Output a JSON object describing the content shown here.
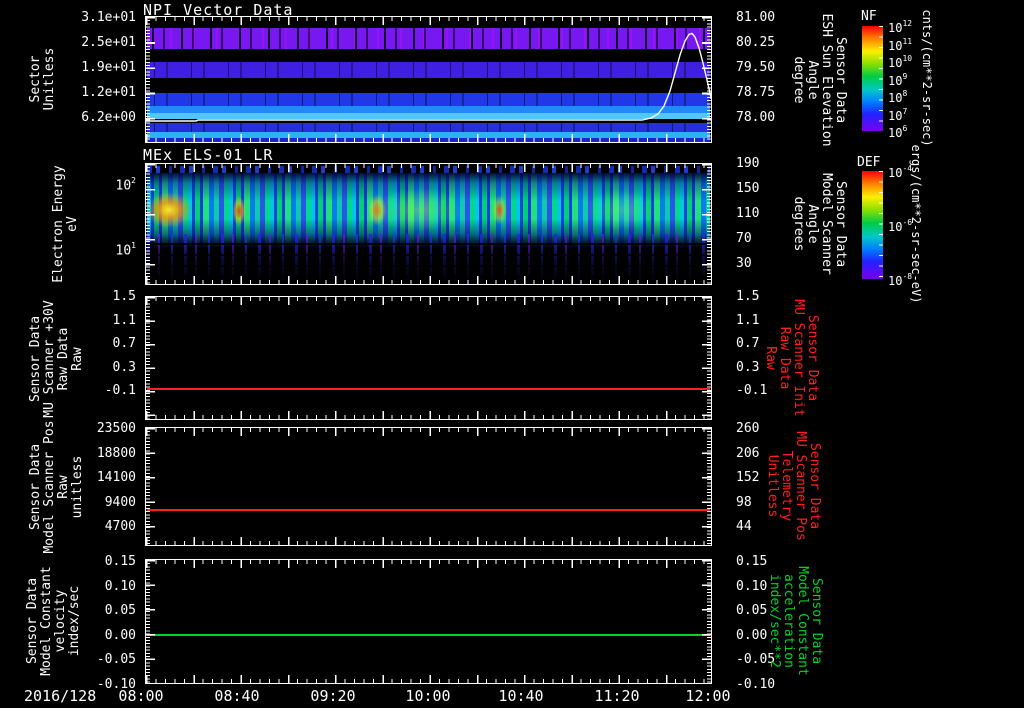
{
  "figure": {
    "date_label": "2016/128",
    "x_tick_labels": [
      "08:00",
      "08:40",
      "09:20",
      "10:00",
      "10:40",
      "11:20",
      "12:00"
    ],
    "colors": {
      "background": "#000000",
      "axis": "#ffffff",
      "red_line": "#ff2020",
      "green_line": "#00d22a"
    }
  },
  "panel1": {
    "title": "NPI Vector Data",
    "left_label_lines": [
      "Sector",
      "Unitless"
    ],
    "left_ticks": [
      "3.1e+01",
      "2.5e+01",
      "1.9e+01",
      "1.2e+01",
      "6.2e+00"
    ],
    "right_ticks": [
      "81.00",
      "80.25",
      "79.50",
      "78.75",
      "78.00"
    ],
    "right_label_lines": [
      "Sensor Data",
      "ESH Sun Elevation",
      "Angle",
      "degree"
    ]
  },
  "panel2": {
    "title": "MEx ELS-01 LR",
    "left_label_lines": [
      "Electron Energy",
      "eV"
    ],
    "left_ticks": [
      [
        "10",
        "2"
      ],
      [
        "10",
        "1"
      ]
    ],
    "right_ticks": [
      "190",
      "150",
      "110",
      "70",
      "30"
    ],
    "right_label_lines": [
      "Sensor Data",
      "Model Scanner",
      "Angle",
      "degrees"
    ]
  },
  "panel3": {
    "left_label_lines": [
      "Sensor Data",
      "MU Scanner +30V",
      "Raw Data",
      "Raw"
    ],
    "left_ticks": [
      "1.5",
      "1.1",
      "0.7",
      "0.3",
      "-0.1"
    ],
    "right_ticks": [
      "1.5",
      "1.1",
      "0.7",
      "0.3",
      "-0.1"
    ],
    "right_label_lines": [
      "Sensor Data",
      "MU Scanner Init",
      "Raw Data",
      "Raw"
    ],
    "line_value": 0.0
  },
  "panel4": {
    "left_label_lines": [
      "Sensor Data",
      "Model Scanner Pos",
      "Raw",
      "unitless"
    ],
    "left_ticks": [
      "23500",
      "18800",
      "14100",
      "9400",
      "4700"
    ],
    "right_ticks": [
      "260",
      "206",
      "152",
      "98",
      "44"
    ],
    "right_label_lines": [
      "Sensor Data",
      "MU Scanner Pos",
      "Telemetry",
      "Unitless"
    ],
    "line_value": 7900
  },
  "panel5": {
    "left_label_lines": [
      "Sensor Data",
      "Model Constant",
      "velocity",
      "index/sec"
    ],
    "left_ticks": [
      "0.15",
      "0.10",
      "0.05",
      "0.00",
      "-0.05",
      "-0.10"
    ],
    "right_ticks": [
      "0.15",
      "0.10",
      "0.05",
      "0.00",
      "-0.05",
      "-0.10"
    ],
    "right_label_lines": [
      "Sensor Data",
      "Model Constant",
      "acceleration",
      "index/sec**2"
    ],
    "line_value": 0.0
  },
  "colorbar_nf": {
    "name": "NF",
    "tick_labels": [
      [
        "10",
        "12"
      ],
      [
        "10",
        "11"
      ],
      [
        "10",
        "10"
      ],
      [
        "10",
        "9"
      ],
      [
        "10",
        "8"
      ],
      [
        "10",
        "7"
      ],
      [
        "10",
        "6"
      ]
    ],
    "units": "cnts/(cm**2-sr-sec)"
  },
  "colorbar_def": {
    "name": "DEF",
    "tick_labels": [
      [
        "10",
        "-4"
      ],
      [
        "10",
        "-6"
      ],
      [
        "10",
        "-8"
      ]
    ],
    "units": "ergs/(cm**2-sr-sec-eV)"
  },
  "chart_data": [
    {
      "type": "heatmap",
      "title": "NPI Vector Data",
      "ylabel": "Sector Unitless",
      "y_ticks": [
        31,
        25,
        19,
        12,
        6.2
      ],
      "x_range": [
        "2016/128 08:00",
        "12:00"
      ],
      "x_ticks": [
        "08:00",
        "08:40",
        "09:20",
        "10:00",
        "10:40",
        "11:20",
        "12:00"
      ],
      "colorbar": {
        "name": "NF",
        "units": "cnts/(cm**2-sr-sec)",
        "range_log10": [
          6,
          12
        ]
      },
      "description": "Horizontal sector bands: speckled violet band near sector 25, blue-violet band near 19, blue band near 12, bright cyan bands near sectors 5-8, dark elsewhere",
      "overlay_series": {
        "name": "Sensor Data ESH Sun Elevation Angle (degree)",
        "axis_range": [
          78.0,
          81.0
        ],
        "right_ticks": [
          81.0,
          80.25,
          79.5,
          78.75,
          78.0
        ],
        "points_time_value": [
          [
            "08:00",
            78.0
          ],
          [
            "11:30",
            78.0
          ],
          [
            "11:40",
            79.0
          ],
          [
            "11:50",
            80.6
          ],
          [
            "11:55",
            79.5
          ],
          [
            "12:00",
            78.6
          ]
        ]
      }
    },
    {
      "type": "heatmap",
      "title": "MEx ELS-01 LR",
      "ylabel": "Electron Energy eV",
      "yscale": "log",
      "y_ticks": [
        100,
        10
      ],
      "right_axis": {
        "label": "Sensor Data Model Scanner Angle degrees",
        "ticks": [
          190,
          150,
          110,
          70,
          30
        ]
      },
      "colorbar": {
        "name": "DEF",
        "units": "ergs/(cm**2-sr-sec-eV)",
        "range_log10": [
          -8,
          -4
        ]
      },
      "description": "Electron energy flux: bright green/cyan vertical streaks between ~15-100 eV with yellow/orange hot spots (strongest near 08:00-08:15), blue/purple speckle below ~10 eV fading to black"
    },
    {
      "type": "line",
      "ylabel": "Sensor Data MU Scanner +30V Raw Data Raw",
      "right_label": "Sensor Data MU Scanner Init Raw Data Raw",
      "y_ticks": [
        1.5,
        1.1,
        0.7,
        0.3,
        -0.1
      ],
      "series": [
        {
          "name": "MU Scanner +30V",
          "color": "#ff2020",
          "constant_value": 0.0
        }
      ]
    },
    {
      "type": "line",
      "ylabel": "Sensor Data Model Scanner Pos Raw unitless",
      "right_label": "Sensor Data MU Scanner Pos Telemetry Unitless",
      "y_ticks": [
        23500,
        18800,
        14100,
        9400,
        4700
      ],
      "right_y_ticks": [
        260,
        206,
        152,
        98,
        44
      ],
      "series": [
        {
          "name": "Model Scanner Pos",
          "color": "#ff2020",
          "constant_value": 7900
        }
      ]
    },
    {
      "type": "line",
      "ylabel": "Sensor Data Model Constant velocity index/sec",
      "right_label": "Sensor Data Model Constant acceleration index/sec**2",
      "y_ticks": [
        0.15,
        0.1,
        0.05,
        0.0,
        -0.05,
        -0.1
      ],
      "series": [
        {
          "name": "Model Constant velocity",
          "color": "#00d22a",
          "constant_value": 0.0
        }
      ]
    }
  ]
}
